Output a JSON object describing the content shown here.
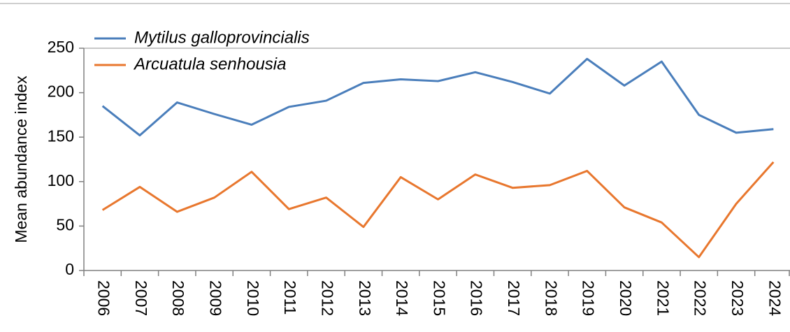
{
  "chart_data": {
    "type": "line",
    "y_label": "Mean abundance index",
    "categories": [
      "2006",
      "2007",
      "2008",
      "2009",
      "2010",
      "2011",
      "2012",
      "2013",
      "2014",
      "2015",
      "2016",
      "2017",
      "2018",
      "2019",
      "2020",
      "2021",
      "2022",
      "2023",
      "2024"
    ],
    "series": [
      {
        "name": "Mytilus galloprovincialis",
        "color": "#4a7ebb",
        "values": [
          185,
          152,
          189,
          176,
          164,
          184,
          191,
          211,
          215,
          213,
          223,
          212,
          199,
          238,
          208,
          235,
          175,
          155,
          159
        ]
      },
      {
        "name": "Arcuatula senhousia",
        "color": "#e8772e",
        "values": [
          68,
          94,
          66,
          82,
          111,
          69,
          82,
          49,
          105,
          80,
          108,
          93,
          96,
          112,
          71,
          54,
          15,
          75,
          122
        ]
      }
    ],
    "ylim": [
      0,
      250
    ],
    "yticks": [
      0,
      50,
      100,
      150,
      200,
      250
    ],
    "legend": "top-left"
  }
}
